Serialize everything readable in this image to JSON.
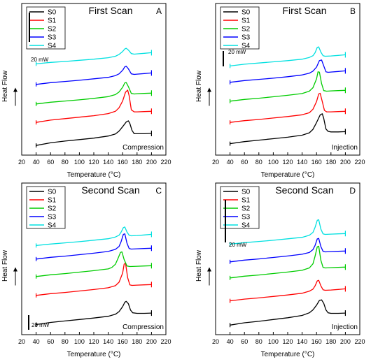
{
  "chart_data": [
    {
      "panel": "A",
      "type": "line",
      "title": "First Scan",
      "xlabel": "Temperature (°C)",
      "ylabel": "Heat Flow",
      "annotation": "Compression",
      "scale_bar": "20 mW",
      "xlim": [
        20,
        220
      ],
      "xticks": [
        20,
        40,
        60,
        80,
        100,
        120,
        140,
        160,
        180,
        200,
        220
      ],
      "legend_position": "top-left",
      "series": [
        {
          "name": "S0",
          "color": "#000000",
          "x": [
            40,
            60,
            80,
            100,
            120,
            140,
            150,
            155,
            160,
            165,
            168,
            170,
            173,
            176,
            180,
            190,
            200
          ],
          "y": [
            -4.8,
            -3.9,
            -3.3,
            -2.8,
            -2.3,
            -1.6,
            -0.9,
            0.1,
            1.6,
            3.2,
            3.6,
            2.7,
            0.3,
            -0.8,
            -0.8,
            -0.8,
            -0.7
          ]
        },
        {
          "name": "S1",
          "color": "#ff0000",
          "x": [
            40,
            60,
            80,
            100,
            120,
            140,
            150,
            155,
            160,
            164,
            167,
            169,
            172,
            176,
            180,
            190,
            200
          ],
          "y": [
            -4.1,
            -3.3,
            -2.8,
            -2.3,
            -1.8,
            -1.1,
            -0.3,
            0.9,
            3.2,
            6.2,
            6.9,
            5.0,
            0.2,
            -0.5,
            -0.5,
            -0.4,
            -0.3
          ]
        },
        {
          "name": "S2",
          "color": "#00cc00",
          "x": [
            40,
            60,
            80,
            100,
            120,
            140,
            150,
            155,
            160,
            163,
            165,
            168,
            172,
            176,
            180,
            190,
            200
          ],
          "y": [
            -4.0,
            -3.4,
            -3.0,
            -2.6,
            -2.1,
            -1.5,
            -0.8,
            0.1,
            1.7,
            3.2,
            3.3,
            1.9,
            -0.4,
            -0.6,
            -0.5,
            -0.4,
            -0.3
          ]
        },
        {
          "name": "S3",
          "color": "#0000ff",
          "x": [
            40,
            60,
            80,
            100,
            120,
            140,
            150,
            155,
            160,
            163,
            165,
            168,
            172,
            176,
            180,
            190,
            200
          ],
          "y": [
            -4.0,
            -3.4,
            -3.0,
            -2.6,
            -2.1,
            -1.6,
            -1.0,
            -0.4,
            0.8,
            2.0,
            2.2,
            1.3,
            -0.4,
            -0.6,
            -0.5,
            -0.3,
            -0.1
          ]
        },
        {
          "name": "S4",
          "color": "#00e0e0",
          "x": [
            40,
            60,
            80,
            100,
            120,
            140,
            150,
            155,
            160,
            163,
            165,
            168,
            172,
            176,
            180,
            190,
            200
          ],
          "y": [
            -3.9,
            -3.4,
            -3.1,
            -2.7,
            -2.3,
            -1.8,
            -1.3,
            -0.7,
            0.3,
            1.2,
            1.4,
            0.8,
            -0.4,
            -0.6,
            -0.5,
            -0.3,
            -0.1
          ]
        }
      ]
    },
    {
      "panel": "B",
      "type": "line",
      "title": "First Scan",
      "xlabel": "Temperature (°C)",
      "ylabel": "Heat Flow",
      "annotation": "Injection",
      "scale_bar": "20 mW",
      "xlim": [
        20,
        220
      ],
      "xticks": [
        20,
        40,
        60,
        80,
        100,
        120,
        140,
        160,
        180,
        200,
        220
      ],
      "legend_position": "top-left",
      "series": [
        {
          "name": "S0",
          "color": "#000000",
          "x": [
            40,
            60,
            80,
            100,
            120,
            140,
            150,
            155,
            160,
            165,
            168,
            170,
            173,
            176,
            180,
            190,
            200
          ],
          "y": [
            -4.2,
            -3.5,
            -3.0,
            -2.5,
            -2.0,
            -1.3,
            -0.5,
            0.7,
            3.0,
            5.6,
            6.0,
            4.4,
            0.8,
            0.0,
            -0.2,
            -0.2,
            -0.1
          ]
        },
        {
          "name": "S1",
          "color": "#ff0000",
          "x": [
            40,
            60,
            80,
            100,
            120,
            140,
            150,
            155,
            160,
            163,
            165,
            168,
            171,
            174,
            180,
            190,
            200
          ],
          "y": [
            -4.1,
            -3.5,
            -3.1,
            -2.6,
            -2.1,
            -1.5,
            -0.8,
            0.4,
            3.0,
            5.6,
            5.8,
            3.0,
            0.0,
            -0.5,
            -0.5,
            -0.4,
            -0.3
          ]
        },
        {
          "name": "S2",
          "color": "#00cc00",
          "x": [
            40,
            60,
            80,
            100,
            120,
            140,
            150,
            155,
            160,
            162,
            164,
            167,
            170,
            174,
            180,
            190,
            200
          ],
          "y": [
            -4.0,
            -3.4,
            -3.0,
            -2.5,
            -2.0,
            -1.4,
            -0.6,
            0.6,
            3.6,
            6.0,
            5.9,
            2.0,
            -0.4,
            -0.6,
            -0.5,
            -0.4,
            -0.3
          ]
        },
        {
          "name": "S3",
          "color": "#0000ff",
          "x": [
            40,
            60,
            80,
            100,
            120,
            140,
            150,
            155,
            160,
            164,
            167,
            170,
            173,
            176,
            180,
            190,
            200
          ],
          "y": [
            -4.0,
            -3.4,
            -3.0,
            -2.6,
            -2.1,
            -1.5,
            -0.9,
            -0.2,
            1.2,
            3.4,
            3.6,
            1.6,
            -0.4,
            -0.6,
            -0.5,
            -0.3,
            -0.1
          ]
        },
        {
          "name": "S4",
          "color": "#00e0e0",
          "x": [
            40,
            60,
            80,
            100,
            120,
            140,
            150,
            155,
            158,
            161,
            163,
            166,
            169,
            172,
            180,
            190,
            200
          ],
          "y": [
            -3.9,
            -3.3,
            -2.9,
            -2.5,
            -2.1,
            -1.6,
            -1.0,
            -0.4,
            0.6,
            2.4,
            2.6,
            0.8,
            -0.4,
            -0.6,
            -0.5,
            -0.3,
            -0.1
          ]
        }
      ]
    },
    {
      "panel": "C",
      "type": "line",
      "title": "Second Scan",
      "xlabel": "Temperature (°C)",
      "ylabel": "Heat Flow",
      "annotation": "Compression",
      "scale_bar": "20 mW",
      "xlim": [
        20,
        220
      ],
      "xticks": [
        20,
        40,
        60,
        80,
        100,
        120,
        140,
        160,
        180,
        200,
        220
      ],
      "legend_position": "top-left",
      "series": [
        {
          "name": "S0",
          "color": "#000000",
          "x": [
            40,
            60,
            80,
            100,
            120,
            140,
            150,
            155,
            160,
            163,
            165,
            168,
            171,
            174,
            180,
            190,
            200
          ],
          "y": [
            -4.4,
            -3.7,
            -3.2,
            -2.7,
            -2.2,
            -1.6,
            -0.9,
            0.0,
            1.7,
            3.2,
            3.5,
            2.7,
            0.5,
            -0.4,
            -0.6,
            -0.6,
            -0.5
          ]
        },
        {
          "name": "S1",
          "color": "#ff0000",
          "x": [
            40,
            60,
            80,
            100,
            120,
            140,
            150,
            155,
            160,
            162,
            164,
            167,
            170,
            173,
            180,
            190,
            200
          ],
          "y": [
            -4.0,
            -3.4,
            -3.0,
            -2.5,
            -2.0,
            -1.4,
            -0.7,
            0.5,
            3.6,
            6.6,
            7.0,
            2.0,
            -0.4,
            -0.6,
            -0.5,
            -0.4,
            -0.3
          ]
        },
        {
          "name": "S2",
          "color": "#00cc00",
          "x": [
            40,
            60,
            80,
            100,
            120,
            140,
            145,
            150,
            154,
            157,
            159,
            162,
            166,
            170,
            180,
            190,
            200
          ],
          "y": [
            -4.0,
            -3.4,
            -3.0,
            -2.5,
            -2.0,
            -1.4,
            -0.9,
            0.2,
            2.4,
            4.2,
            4.4,
            1.8,
            -0.4,
            -0.6,
            -0.5,
            -0.4,
            -0.3
          ]
        },
        {
          "name": "S3",
          "color": "#0000ff",
          "x": [
            40,
            60,
            80,
            100,
            120,
            140,
            150,
            155,
            158,
            161,
            163,
            166,
            169,
            172,
            180,
            190,
            200
          ],
          "y": [
            -4.0,
            -3.4,
            -3.0,
            -2.5,
            -2.0,
            -1.4,
            -0.7,
            0.3,
            2.0,
            4.4,
            4.6,
            1.4,
            -0.4,
            -0.6,
            -0.5,
            -0.4,
            -0.3
          ]
        },
        {
          "name": "S4",
          "color": "#00e0e0",
          "x": [
            40,
            60,
            80,
            100,
            120,
            140,
            150,
            155,
            158,
            161,
            163,
            166,
            169,
            172,
            180,
            190,
            200
          ],
          "y": [
            -3.9,
            -3.4,
            -3.0,
            -2.6,
            -2.1,
            -1.6,
            -1.0,
            -0.4,
            0.7,
            2.2,
            2.4,
            0.7,
            -0.4,
            -0.6,
            -0.5,
            -0.3,
            -0.1
          ]
        }
      ]
    },
    {
      "panel": "D",
      "type": "line",
      "title": "Second Scan",
      "xlabel": "Temperature (°C)",
      "ylabel": "Heat Flow",
      "annotation": "Injection",
      "scale_bar": "20 mW",
      "xlim": [
        20,
        220
      ],
      "xticks": [
        20,
        40,
        60,
        80,
        100,
        120,
        140,
        160,
        180,
        200,
        220
      ],
      "legend_position": "top-left",
      "series": [
        {
          "name": "S0",
          "color": "#000000",
          "x": [
            40,
            60,
            80,
            100,
            120,
            140,
            150,
            155,
            160,
            164,
            167,
            170,
            173,
            176,
            180,
            190,
            200
          ],
          "y": [
            -4.6,
            -3.8,
            -3.3,
            -2.7,
            -2.1,
            -1.3,
            -0.4,
            0.6,
            2.2,
            3.8,
            4.0,
            2.8,
            0.6,
            -0.4,
            -0.6,
            -0.6,
            -0.5
          ]
        },
        {
          "name": "S1",
          "color": "#ff0000",
          "x": [
            40,
            60,
            80,
            100,
            120,
            140,
            150,
            155,
            158,
            161,
            163,
            166,
            169,
            172,
            180,
            190,
            200
          ],
          "y": [
            -4.2,
            -3.6,
            -3.2,
            -2.7,
            -2.2,
            -1.6,
            -0.9,
            -0.2,
            0.9,
            2.6,
            2.8,
            0.9,
            -0.4,
            -0.6,
            -0.5,
            -0.3,
            -0.1
          ]
        },
        {
          "name": "S2",
          "color": "#00cc00",
          "x": [
            40,
            60,
            80,
            100,
            120,
            140,
            150,
            155,
            158,
            161,
            163,
            166,
            169,
            172,
            180,
            190,
            200
          ],
          "y": [
            -4.0,
            -3.4,
            -3.0,
            -2.5,
            -2.0,
            -1.4,
            -0.6,
            0.8,
            3.4,
            6.6,
            6.8,
            2.0,
            -0.4,
            -0.6,
            -0.5,
            -0.4,
            -0.3
          ]
        },
        {
          "name": "S3",
          "color": "#0000ff",
          "x": [
            40,
            60,
            80,
            100,
            120,
            140,
            150,
            155,
            158,
            161,
            163,
            166,
            169,
            172,
            180,
            190,
            200
          ],
          "y": [
            -4.0,
            -3.4,
            -3.0,
            -2.5,
            -2.0,
            -1.4,
            -0.8,
            0.2,
            1.6,
            3.8,
            4.0,
            1.2,
            -0.4,
            -0.6,
            -0.5,
            -0.4,
            -0.3
          ]
        },
        {
          "name": "S4",
          "color": "#00e0e0",
          "x": [
            40,
            60,
            80,
            100,
            120,
            140,
            150,
            155,
            158,
            161,
            163,
            166,
            169,
            172,
            180,
            190,
            200
          ],
          "y": [
            -3.9,
            -3.4,
            -3.0,
            -2.6,
            -2.1,
            -1.6,
            -0.9,
            0.1,
            1.8,
            4.2,
            4.4,
            1.2,
            -0.4,
            -0.6,
            -0.5,
            -0.4,
            -0.3
          ]
        }
      ]
    }
  ]
}
